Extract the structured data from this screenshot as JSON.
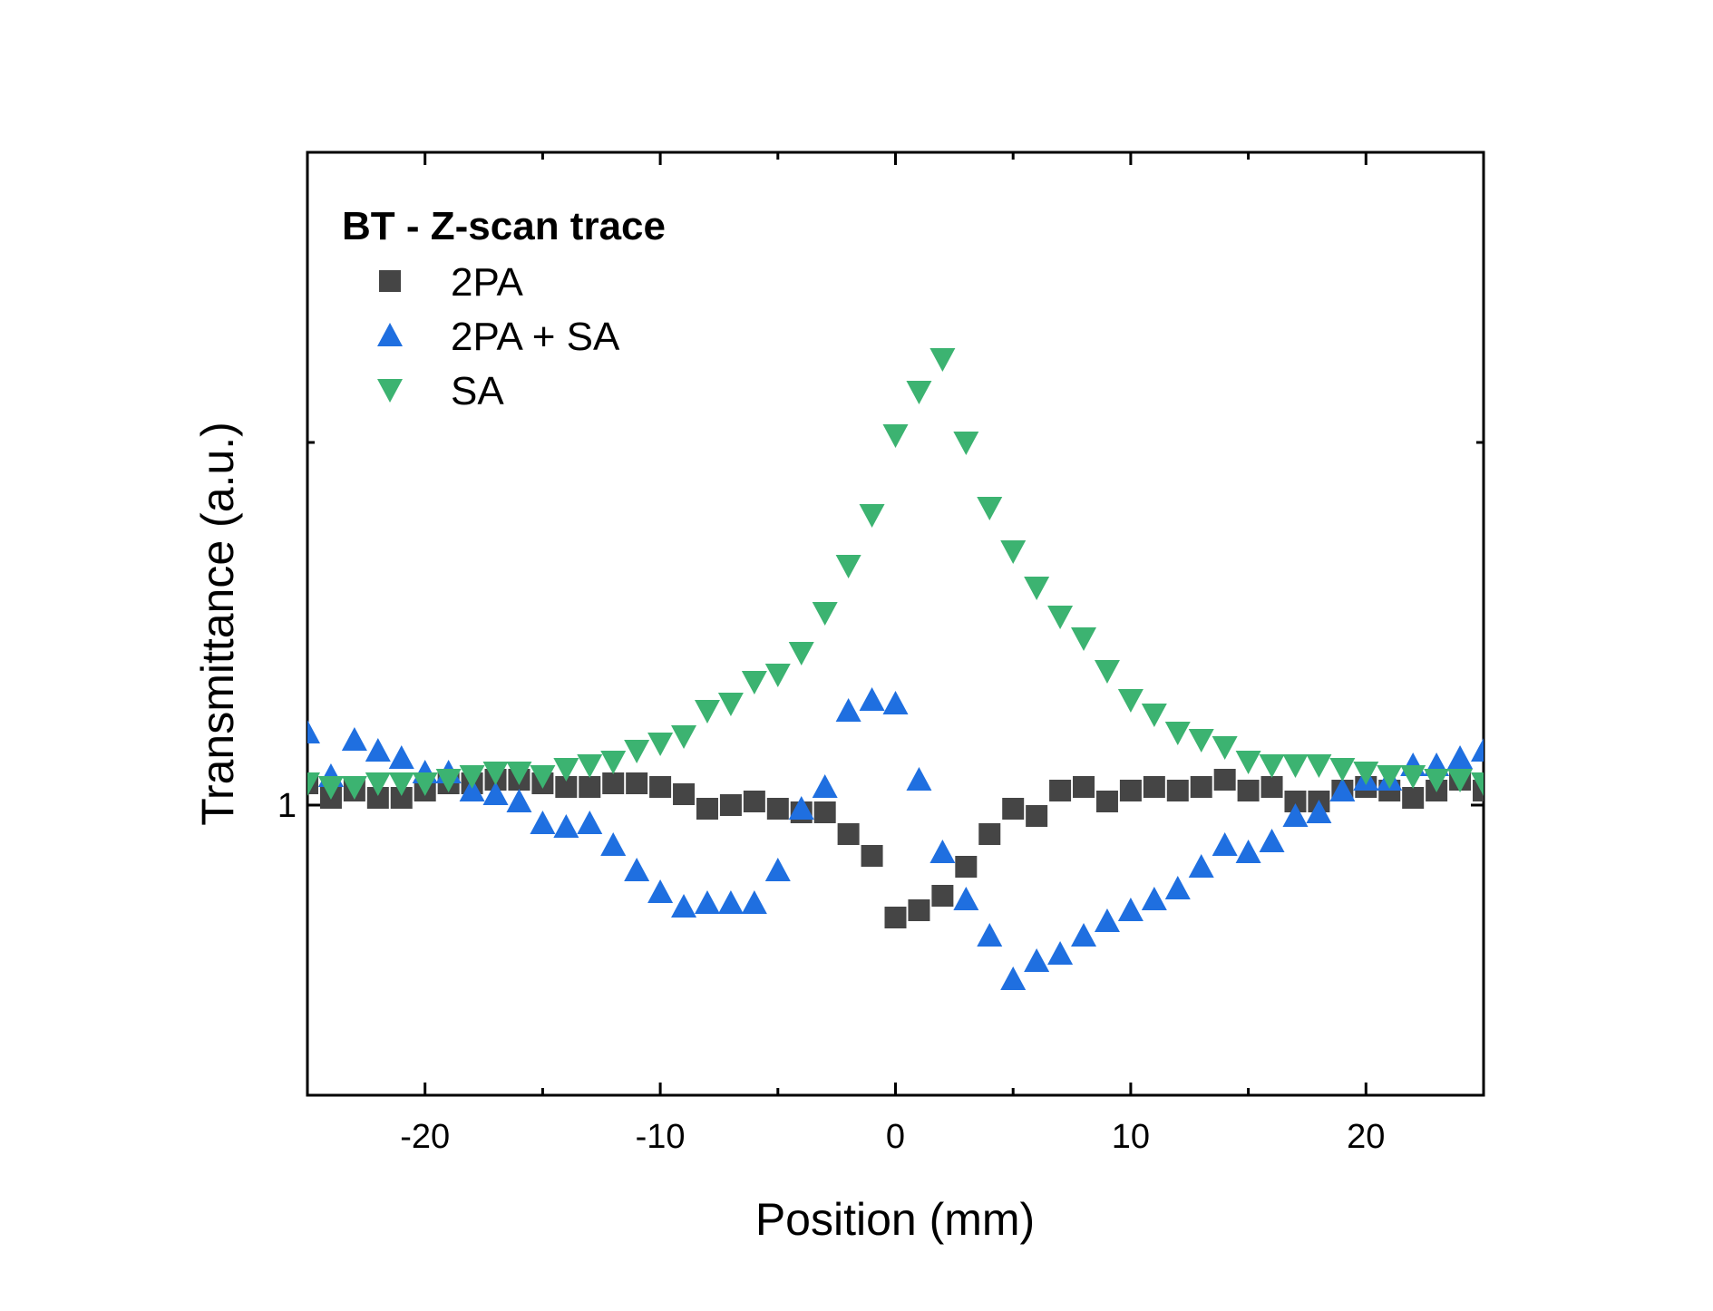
{
  "chart_data": {
    "type": "scatter",
    "title": "",
    "xlabel": "Position (mm)",
    "ylabel": "Transmittance (a.u.)",
    "xlim": [
      -25,
      25
    ],
    "ylim": [
      0.6,
      1.9
    ],
    "xticks": [
      -20,
      -10,
      0,
      10,
      20
    ],
    "yticks": [
      1
    ],
    "grid": false,
    "legend": {
      "title": "BT - Z-scan trace",
      "placement": "top-left"
    },
    "x": [
      -25,
      -24,
      -23,
      -22,
      -21,
      -20,
      -19,
      -18,
      -17,
      -16,
      -15,
      -14,
      -13,
      -12,
      -11,
      -10,
      -9,
      -8,
      -7,
      -6,
      -5,
      -4,
      -3,
      -2,
      -1,
      0,
      1,
      2,
      3,
      4,
      5,
      6,
      7,
      8,
      9,
      10,
      11,
      12,
      13,
      14,
      15,
      16,
      17,
      18,
      19,
      20,
      21,
      22,
      23,
      24,
      25
    ],
    "series": [
      {
        "name": "2PA",
        "marker": "square",
        "color": "#454545",
        "values": [
          1.03,
          1.01,
          1.02,
          1.01,
          1.01,
          1.02,
          1.03,
          1.03,
          1.035,
          1.035,
          1.03,
          1.025,
          1.025,
          1.03,
          1.03,
          1.025,
          1.015,
          0.995,
          1.0,
          1.005,
          0.995,
          0.99,
          0.99,
          0.96,
          0.93,
          0.845,
          0.855,
          0.875,
          0.915,
          0.96,
          0.995,
          0.985,
          1.02,
          1.025,
          1.005,
          1.02,
          1.025,
          1.02,
          1.025,
          1.035,
          1.02,
          1.025,
          1.005,
          1.005,
          1.02,
          1.025,
          1.02,
          1.01,
          1.02,
          1.035,
          1.02
        ]
      },
      {
        "name": "2PA + SA",
        "marker": "triangle-up",
        "color": "#1f6fe0",
        "values": [
          1.1,
          1.04,
          1.09,
          1.075,
          1.065,
          1.045,
          1.045,
          1.02,
          1.015,
          1.005,
          0.975,
          0.97,
          0.975,
          0.945,
          0.91,
          0.88,
          0.86,
          0.865,
          0.865,
          0.865,
          0.91,
          0.995,
          1.025,
          1.13,
          1.145,
          1.14,
          1.035,
          0.935,
          0.87,
          0.82,
          0.76,
          0.785,
          0.795,
          0.82,
          0.84,
          0.855,
          0.87,
          0.885,
          0.915,
          0.945,
          0.935,
          0.95,
          0.985,
          0.99,
          1.02,
          1.035,
          1.035,
          1.055,
          1.055,
          1.065,
          1.075
        ]
      },
      {
        "name": "SA",
        "marker": "triangle-down",
        "color": "#3cb371",
        "values": [
          1.03,
          1.025,
          1.025,
          1.03,
          1.03,
          1.03,
          1.035,
          1.04,
          1.045,
          1.045,
          1.04,
          1.05,
          1.055,
          1.06,
          1.075,
          1.085,
          1.095,
          1.13,
          1.14,
          1.17,
          1.18,
          1.21,
          1.265,
          1.33,
          1.4,
          1.51,
          1.57,
          1.615,
          1.5,
          1.41,
          1.35,
          1.3,
          1.26,
          1.23,
          1.185,
          1.145,
          1.125,
          1.1,
          1.09,
          1.08,
          1.06,
          1.055,
          1.055,
          1.055,
          1.05,
          1.045,
          1.04,
          1.04,
          1.035,
          1.035,
          1.03
        ]
      }
    ]
  }
}
